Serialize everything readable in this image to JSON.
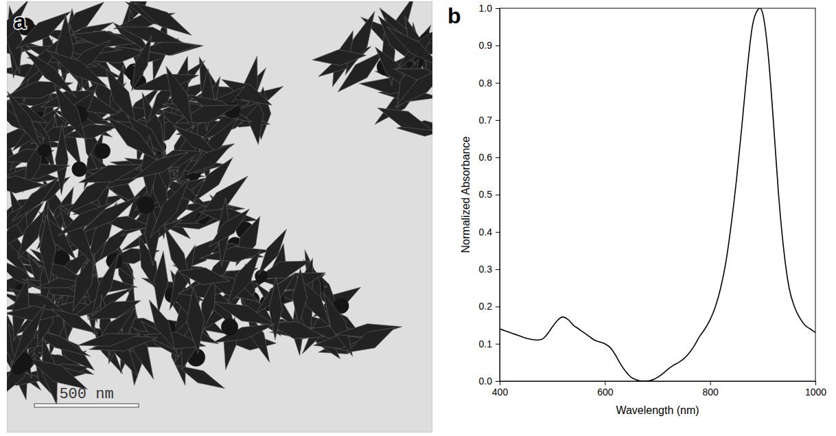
{
  "image": {
    "panel_label": "a",
    "scale_bar_label": "500 nm"
  },
  "chart_data": {
    "type": "line",
    "panel_label": "b",
    "x_label": "Wavelength (nm)",
    "y_label": "Normalized Absorbance",
    "x": [
      400,
      410,
      420,
      430,
      440,
      450,
      460,
      470,
      480,
      490,
      500,
      510,
      520,
      530,
      540,
      550,
      560,
      570,
      580,
      590,
      600,
      610,
      620,
      630,
      640,
      650,
      660,
      670,
      680,
      690,
      700,
      710,
      720,
      730,
      740,
      750,
      760,
      770,
      780,
      790,
      800,
      810,
      820,
      830,
      840,
      850,
      860,
      870,
      880,
      890,
      895,
      900,
      910,
      920,
      930,
      940,
      950,
      960,
      970,
      980,
      990,
      1000
    ],
    "values": [
      0.14,
      0.135,
      0.13,
      0.125,
      0.12,
      0.115,
      0.112,
      0.11,
      0.112,
      0.125,
      0.145,
      0.163,
      0.172,
      0.165,
      0.15,
      0.14,
      0.13,
      0.12,
      0.11,
      0.105,
      0.1,
      0.09,
      0.07,
      0.045,
      0.025,
      0.01,
      0.003,
      0.0,
      0.0,
      0.003,
      0.01,
      0.02,
      0.032,
      0.042,
      0.05,
      0.06,
      0.075,
      0.095,
      0.12,
      0.14,
      0.165,
      0.2,
      0.25,
      0.32,
      0.42,
      0.54,
      0.68,
      0.83,
      0.95,
      0.995,
      1.0,
      0.985,
      0.88,
      0.7,
      0.5,
      0.35,
      0.25,
      0.2,
      0.17,
      0.15,
      0.14,
      0.13
    ],
    "color": "#000000",
    "xlim": [
      400,
      1000
    ],
    "xticks": [
      400,
      600,
      800,
      1000
    ],
    "ylim": [
      0,
      1
    ],
    "yticks": [
      {
        "value": 0,
        "label": "0.0"
      },
      0.1,
      0.2,
      0.3,
      0.4,
      0.5,
      0.6,
      0.7,
      0.8,
      0.9,
      {
        "value": 1,
        "label": "1.0"
      }
    ],
    "grid": false
  }
}
